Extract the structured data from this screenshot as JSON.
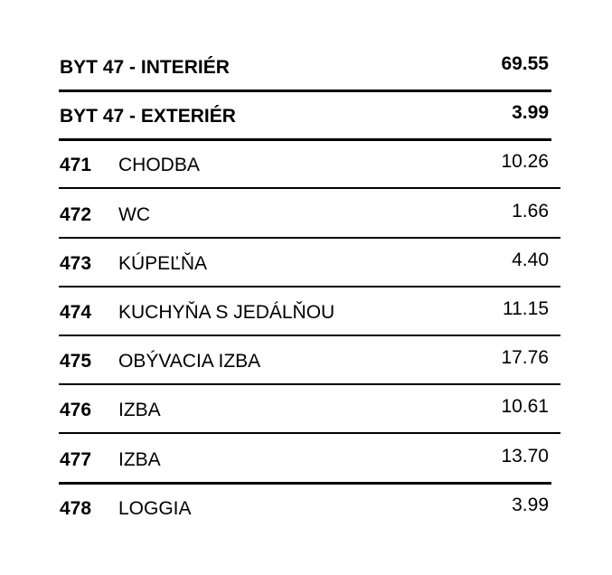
{
  "summary": [
    {
      "label": "BYT 47 - INTERIÉR",
      "area": "69.55"
    },
    {
      "label": "BYT 47 - EXTERIÉR",
      "area": "3.99"
    }
  ],
  "rooms": [
    {
      "number": "471",
      "name": "CHODBA",
      "area": "10.26"
    },
    {
      "number": "472",
      "name": "WC",
      "area": "1.66"
    },
    {
      "number": "473",
      "name": "KÚPEĽŇA",
      "area": "4.40"
    },
    {
      "number": "474",
      "name": "KUCHYŇA S JEDÁLŇOU",
      "area": "11.15"
    },
    {
      "number": "475",
      "name": "OBÝVACIA IZBA",
      "area": "17.76"
    },
    {
      "number": "476",
      "name": "IZBA",
      "area": "10.61"
    },
    {
      "number": "477",
      "name": "IZBA",
      "area": "13.70"
    },
    {
      "number": "478",
      "name": "LOGGIA",
      "area": "3.99"
    }
  ]
}
